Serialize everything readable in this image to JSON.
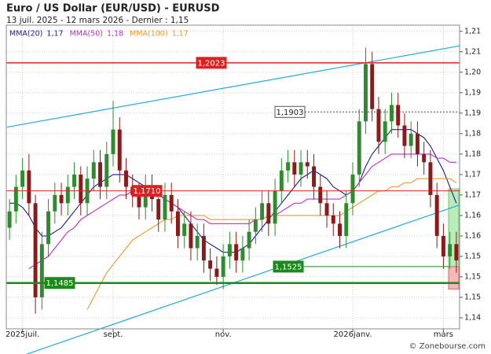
{
  "chart_data": {
    "type": "candlestick",
    "title": "Euro / US Dollar (EUR/USD) - EURUSD",
    "subtitle": "13 juil. 2025 - 12 mars 2026 - Dernier : 1,15",
    "credit": "© Zonebourse.com",
    "categories": [
      null,
      null,
      "2025juil.",
      null,
      null,
      null,
      null,
      null,
      null,
      null,
      null,
      null,
      null,
      null,
      null,
      null,
      "sept.",
      null,
      null,
      null,
      null,
      null,
      null,
      null,
      null,
      null,
      null,
      null,
      null,
      null,
      null,
      null,
      null,
      "nov.",
      null,
      null,
      null,
      null,
      null,
      null,
      null,
      null,
      null,
      null,
      null,
      null,
      null,
      null,
      null,
      null,
      null,
      null,
      null,
      "2026janv.",
      null,
      null,
      null,
      null,
      null,
      null,
      null,
      null,
      null,
      null,
      null,
      null,
      null,
      "mars",
      null,
      null
    ],
    "open": [
      1.162,
      1.166,
      1.172,
      1.176,
      1.168,
      1.145,
      1.158,
      1.166,
      1.17,
      1.168,
      1.172,
      1.175,
      1.168,
      1.174,
      1.178,
      1.172,
      1.18,
      1.186,
      1.176,
      1.172,
      1.17,
      1.167,
      1.172,
      1.169,
      1.164,
      1.17,
      1.166,
      1.16,
      1.163,
      1.157,
      1.16,
      1.154,
      1.152,
      1.15,
      1.155,
      1.158,
      1.154,
      1.157,
      1.161,
      1.164,
      1.168,
      1.163,
      1.171,
      1.176,
      1.178,
      1.175,
      1.178,
      1.177,
      1.172,
      1.168,
      1.165,
      1.163,
      1.16,
      1.168,
      1.175,
      1.188,
      1.202,
      1.191,
      1.183,
      1.188,
      1.192,
      1.187,
      1.182,
      1.185,
      1.18,
      1.178,
      1.17,
      1.16,
      1.155,
      1.158
    ],
    "high": [
      1.169,
      1.175,
      1.179,
      1.18,
      1.17,
      1.161,
      1.169,
      1.173,
      1.173,
      1.175,
      1.178,
      1.177,
      1.177,
      1.181,
      1.181,
      1.183,
      1.193,
      1.189,
      1.179,
      1.175,
      1.173,
      1.175,
      1.175,
      1.172,
      1.173,
      1.173,
      1.169,
      1.166,
      1.166,
      1.163,
      1.163,
      1.157,
      1.155,
      1.158,
      1.161,
      1.161,
      1.16,
      1.164,
      1.167,
      1.171,
      1.171,
      1.174,
      1.179,
      1.181,
      1.181,
      1.181,
      1.181,
      1.18,
      1.175,
      1.171,
      1.168,
      1.166,
      1.171,
      1.178,
      1.191,
      1.206,
      1.205,
      1.194,
      1.191,
      1.195,
      1.195,
      1.19,
      1.188,
      1.188,
      1.183,
      1.181,
      1.173,
      1.163,
      1.161,
      1.161
    ],
    "low": [
      1.159,
      1.163,
      1.169,
      1.165,
      1.141,
      1.142,
      1.155,
      1.163,
      1.165,
      1.165,
      1.169,
      1.165,
      1.165,
      1.171,
      1.169,
      1.169,
      1.177,
      1.173,
      1.169,
      1.167,
      1.164,
      1.164,
      1.166,
      1.161,
      1.161,
      1.163,
      1.157,
      1.157,
      1.154,
      1.154,
      1.151,
      1.149,
      1.148,
      1.147,
      1.152,
      1.151,
      1.151,
      1.154,
      1.158,
      1.161,
      1.16,
      1.16,
      1.168,
      1.173,
      1.172,
      1.172,
      1.174,
      1.169,
      1.165,
      1.162,
      1.16,
      1.157,
      1.157,
      1.165,
      1.172,
      1.185,
      1.188,
      1.18,
      1.18,
      1.185,
      1.184,
      1.179,
      1.179,
      1.177,
      1.175,
      1.167,
      1.157,
      1.152,
      1.152,
      1.151
    ],
    "close": [
      1.166,
      1.172,
      1.176,
      1.168,
      1.145,
      1.158,
      1.166,
      1.17,
      1.168,
      1.172,
      1.175,
      1.168,
      1.174,
      1.178,
      1.172,
      1.18,
      1.186,
      1.176,
      1.172,
      1.17,
      1.167,
      1.172,
      1.169,
      1.164,
      1.17,
      1.166,
      1.16,
      1.163,
      1.157,
      1.16,
      1.154,
      1.152,
      1.15,
      1.155,
      1.158,
      1.154,
      1.157,
      1.161,
      1.164,
      1.168,
      1.163,
      1.171,
      1.176,
      1.178,
      1.175,
      1.178,
      1.177,
      1.172,
      1.168,
      1.165,
      1.163,
      1.16,
      1.168,
      1.175,
      1.188,
      1.202,
      1.191,
      1.183,
      1.188,
      1.192,
      1.187,
      1.182,
      1.185,
      1.18,
      1.178,
      1.17,
      1.16,
      1.155,
      1.158,
      1.154
    ],
    "up_color": "#2e8b2e",
    "down_color": "#8b1a1a",
    "series": [
      {
        "name": "MMA(20)",
        "legend_value": "1,17",
        "color": "#1c1c9c",
        "values": [
          1.168,
          1.168,
          1.167,
          1.165,
          1.162,
          1.16,
          1.16,
          1.161,
          1.162,
          1.164,
          1.166,
          1.168,
          1.17,
          1.172,
          1.173,
          1.174,
          1.175,
          1.175,
          1.175,
          1.174,
          1.173,
          1.172,
          1.171,
          1.17,
          1.169,
          1.168,
          1.167,
          1.165,
          1.163,
          1.161,
          1.159,
          1.158,
          1.157,
          1.156,
          1.156,
          1.156,
          1.157,
          1.158,
          1.16,
          1.162,
          1.164,
          1.166,
          1.168,
          1.17,
          1.172,
          1.174,
          1.175,
          1.176,
          1.175,
          1.174,
          1.172,
          1.171,
          1.17,
          1.171,
          1.173,
          1.177,
          1.18,
          1.182,
          1.184,
          1.186,
          1.186,
          1.186,
          1.186,
          1.185,
          1.184,
          1.182,
          1.179,
          1.176,
          1.172,
          1.168
        ]
      },
      {
        "name": "MMA(50)",
        "legend_value": "1,18",
        "color": "#c030c0",
        "values": [
          null,
          null,
          null,
          1.152,
          1.153,
          1.154,
          1.155,
          1.157,
          1.159,
          1.161,
          1.162,
          1.164,
          1.165,
          1.166,
          1.167,
          1.168,
          1.169,
          1.17,
          1.17,
          1.171,
          1.171,
          1.171,
          1.17,
          1.17,
          1.169,
          1.168,
          1.167,
          1.166,
          1.165,
          1.164,
          1.164,
          1.163,
          1.163,
          1.163,
          1.163,
          1.163,
          1.163,
          1.163,
          1.164,
          1.164,
          1.165,
          1.165,
          1.166,
          1.167,
          1.168,
          1.168,
          1.169,
          1.169,
          1.169,
          1.169,
          1.169,
          1.169,
          1.17,
          1.171,
          1.173,
          1.175,
          1.177,
          1.178,
          1.179,
          1.18,
          1.18,
          1.18,
          1.18,
          1.18,
          1.18,
          1.18,
          1.179,
          1.179,
          1.178,
          1.178
        ]
      },
      {
        "name": "MMA(100)",
        "legend_value": "1,17",
        "color": "#e89a2c",
        "values": [
          null,
          null,
          null,
          null,
          null,
          null,
          null,
          null,
          null,
          null,
          null,
          null,
          1.142,
          1.145,
          1.148,
          1.151,
          1.153,
          1.155,
          1.157,
          1.159,
          1.16,
          1.161,
          1.162,
          1.163,
          1.164,
          1.164,
          1.165,
          1.165,
          1.165,
          1.165,
          1.165,
          1.164,
          1.164,
          1.164,
          1.164,
          1.164,
          1.164,
          1.164,
          1.164,
          1.164,
          1.165,
          1.165,
          1.165,
          1.165,
          1.165,
          1.165,
          1.165,
          1.165,
          1.165,
          1.165,
          1.165,
          1.165,
          1.166,
          1.167,
          1.168,
          1.169,
          1.17,
          1.171,
          1.171,
          1.172,
          1.172,
          1.173,
          1.173,
          1.174,
          1.174,
          1.174,
          1.174,
          1.174,
          1.174,
          1.173
        ]
      }
    ],
    "ylim": [
      1.1373,
      1.2115
    ],
    "yticks": [
      {
        "value": 1.14,
        "label": "1,14"
      },
      {
        "value": 1.145,
        "label": "1,15"
      },
      {
        "value": 1.15,
        "label": "1,15"
      },
      {
        "value": 1.155,
        "label": "1,15"
      },
      {
        "value": 1.16,
        "label": "1,16"
      },
      {
        "value": 1.165,
        "label": "1,16"
      },
      {
        "value": 1.17,
        "label": "1,17"
      },
      {
        "value": 1.175,
        "label": "1,17"
      },
      {
        "value": 1.18,
        "label": "1,18"
      },
      {
        "value": 1.185,
        "label": "1,18"
      },
      {
        "value": 1.19,
        "label": "1,19"
      },
      {
        "value": 1.195,
        "label": "1,19"
      },
      {
        "value": 1.2,
        "label": "1,20"
      },
      {
        "value": 1.205,
        "label": "1,21"
      },
      {
        "value": 1.21,
        "label": "1,21"
      }
    ],
    "grid": true,
    "levels": [
      {
        "value": 1.2023,
        "label": "1,2023",
        "color": "#e02020"
      },
      {
        "value": 1.1903,
        "label": "1,1903",
        "color": "#555555"
      },
      {
        "value": 1.171,
        "label": "1,1710",
        "color": "#e02020"
      },
      {
        "value": 1.1525,
        "label": "1,1525",
        "color": "#1a8a1a"
      },
      {
        "value": 1.1485,
        "label": "1,1485",
        "color": "#1a8a1a"
      }
    ],
    "trendlines": [
      {
        "from": [
          0,
          1.1867
        ],
        "to": [
          69,
          1.2063
        ],
        "color": "#22aadd"
      },
      {
        "from": [
          14,
          1.1373
        ],
        "to": [
          69,
          1.1673
        ],
        "color": "#22aadd"
      }
    ],
    "zones": [
      {
        "from": 1.1525,
        "to": 1.1715,
        "color": "#b8ecb8"
      },
      {
        "from": 1.1525,
        "to": 1.147,
        "color": "#f5b8b8"
      }
    ]
  }
}
